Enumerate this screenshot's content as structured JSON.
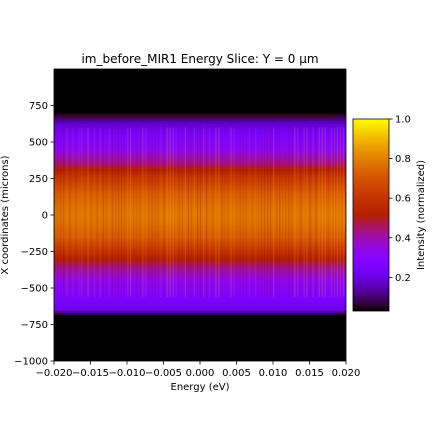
{
  "chart_data": {
    "type": "heatmap",
    "title": "im_before_MIR1 Energy Slice: Y = 0 µm",
    "xlabel": "Energy (eV)",
    "ylabel": "X coordinates (microns)",
    "xlim": [
      -0.02,
      0.02
    ],
    "ylim": [
      -1000,
      1000
    ],
    "x_ticks": [
      -0.02,
      -0.015,
      -0.01,
      -0.005,
      0.0,
      0.005,
      0.01,
      0.015,
      0.02
    ],
    "x_tick_labels": [
      "−0.020",
      "−0.015",
      "−0.010",
      "−0.005",
      "0.000",
      "0.005",
      "0.010",
      "0.015",
      "0.020"
    ],
    "y_ticks": [
      750,
      500,
      250,
      0,
      -250,
      -500,
      -750,
      -1000
    ],
    "y_tick_labels": [
      "750",
      "500",
      "250",
      "0",
      "−250",
      "−500",
      "−750",
      "−1000"
    ],
    "colormap": "gnuplot",
    "colorbar": {
      "label": "Intensity (normalized)",
      "ticks": [
        1.0,
        0.8,
        0.6,
        0.4,
        0.2
      ],
      "tick_labels": [
        "1.0",
        "0.8",
        "0.6",
        "0.4",
        "0.2"
      ],
      "min": 0.03,
      "max": 1.0
    },
    "intensity_profile_x_um": {
      "x": [
        -1000,
        -700,
        -680,
        -650,
        -550,
        -450,
        -350,
        -250,
        -150,
        -50,
        0,
        50,
        150,
        250,
        350,
        450,
        550,
        620,
        660,
        690,
        720,
        1000
      ],
      "intensity": [
        0.0,
        0.0,
        0.06,
        0.2,
        0.28,
        0.33,
        0.44,
        0.6,
        0.72,
        0.77,
        0.78,
        0.77,
        0.72,
        0.62,
        0.45,
        0.32,
        0.26,
        0.18,
        0.1,
        0.05,
        0.0,
        0.0
      ]
    },
    "grid": false
  }
}
